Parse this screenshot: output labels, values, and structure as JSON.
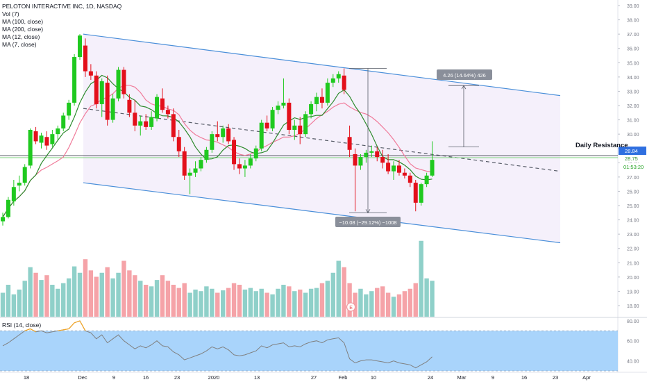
{
  "legend": {
    "title": "PELOTON INTERACTIVE INC, 1D, NASDAQ",
    "vol": "Vol (7)",
    "ma100": "MA (100, close)",
    "ma200": "MA (200, close)",
    "ma12": "MA (12, close)",
    "ma7": "MA (7, close)"
  },
  "rsi_label": "RSI (14, close)",
  "annotations": {
    "daily_resistance": "Daily Resistance",
    "measure_up": "4.26 (14.64%) 426",
    "measure_down": "−10.08 (−29.12%) −1008",
    "earnings_marker": "E"
  },
  "price_tags": {
    "last": "28.84",
    "ma": "28.75",
    "timer": "01:53:20"
  },
  "colors": {
    "up": "#26a69a",
    "down": "#ef5350",
    "up_bright": "#1fc91f",
    "down_bright": "#e3101b",
    "channel": "#4a8fd9",
    "ma_short": "#2e8b2e",
    "ma_long": "#f07b9a",
    "rsi_fill": "#a9d4fb",
    "rsi_line": "#808080",
    "rsi_over": "#f5a623",
    "resistance_line": "#7ed67e"
  },
  "chart_data": [
    {
      "type": "candlestick",
      "title": "PELOTON INTERACTIVE INC, 1D, NASDAQ",
      "x_ticks": [
        "18",
        "Dec",
        "9",
        "16",
        "23",
        "2020",
        "13",
        "27",
        "Feb",
        "10",
        "24",
        "Mar",
        "9",
        "16",
        "23",
        "Apr"
      ],
      "y_ticks": [
        "39.00",
        "38.00",
        "37.00",
        "36.00",
        "35.00",
        "34.00",
        "33.00",
        "32.00",
        "31.00",
        "30.00",
        "29.00",
        "28.00",
        "27.00",
        "26.00",
        "25.00",
        "24.00",
        "23.00",
        "22.00",
        "21.00",
        "20.00",
        "19.00",
        "18.00"
      ],
      "ylim": [
        17.5,
        39.0
      ],
      "candles": [
        {
          "o": 23.9,
          "h": 24.5,
          "l": 23.6,
          "c": 24.2
        },
        {
          "o": 24.2,
          "h": 25.6,
          "l": 24.1,
          "c": 25.4
        },
        {
          "o": 25.3,
          "h": 26.8,
          "l": 25.0,
          "c": 26.3
        },
        {
          "o": 26.4,
          "h": 27.1,
          "l": 26.0,
          "c": 26.6
        },
        {
          "o": 26.6,
          "h": 27.9,
          "l": 26.4,
          "c": 27.7
        },
        {
          "o": 27.8,
          "h": 30.4,
          "l": 27.6,
          "c": 30.3
        },
        {
          "o": 30.2,
          "h": 30.5,
          "l": 29.3,
          "c": 29.5
        },
        {
          "o": 29.4,
          "h": 30.1,
          "l": 29.0,
          "c": 29.9
        },
        {
          "o": 29.8,
          "h": 30.2,
          "l": 28.9,
          "c": 29.2
        },
        {
          "o": 29.3,
          "h": 30.3,
          "l": 29.1,
          "c": 30.0
        },
        {
          "o": 30.0,
          "h": 30.6,
          "l": 29.6,
          "c": 30.4
        },
        {
          "o": 30.4,
          "h": 31.5,
          "l": 30.2,
          "c": 31.3
        },
        {
          "o": 31.3,
          "h": 32.4,
          "l": 31.0,
          "c": 32.2
        },
        {
          "o": 32.2,
          "h": 35.6,
          "l": 32.0,
          "c": 35.4
        },
        {
          "o": 35.4,
          "h": 37.0,
          "l": 35.2,
          "c": 36.9
        },
        {
          "o": 36.2,
          "h": 36.7,
          "l": 34.0,
          "c": 34.4
        },
        {
          "o": 34.4,
          "h": 34.9,
          "l": 33.8,
          "c": 34.1
        },
        {
          "o": 34.1,
          "h": 34.4,
          "l": 31.8,
          "c": 32.1
        },
        {
          "o": 32.1,
          "h": 33.9,
          "l": 31.2,
          "c": 33.7
        },
        {
          "o": 33.6,
          "h": 34.1,
          "l": 30.6,
          "c": 31.0
        },
        {
          "o": 31.0,
          "h": 32.8,
          "l": 30.8,
          "c": 32.5
        },
        {
          "o": 32.5,
          "h": 34.7,
          "l": 32.3,
          "c": 34.5
        },
        {
          "o": 34.5,
          "h": 34.7,
          "l": 32.5,
          "c": 32.8
        },
        {
          "o": 32.4,
          "h": 32.8,
          "l": 31.2,
          "c": 31.5
        },
        {
          "o": 31.5,
          "h": 32.4,
          "l": 30.2,
          "c": 30.6
        },
        {
          "o": 30.6,
          "h": 31.3,
          "l": 29.9,
          "c": 30.9
        },
        {
          "o": 30.9,
          "h": 31.4,
          "l": 30.3,
          "c": 30.5
        },
        {
          "o": 30.5,
          "h": 31.6,
          "l": 30.3,
          "c": 31.2
        },
        {
          "o": 31.1,
          "h": 32.8,
          "l": 30.9,
          "c": 32.6
        },
        {
          "o": 32.5,
          "h": 33.2,
          "l": 31.5,
          "c": 31.7
        },
        {
          "o": 31.7,
          "h": 32.0,
          "l": 31.1,
          "c": 31.4
        },
        {
          "o": 31.4,
          "h": 31.8,
          "l": 29.5,
          "c": 29.8
        },
        {
          "o": 29.8,
          "h": 30.3,
          "l": 28.4,
          "c": 28.8
        },
        {
          "o": 28.8,
          "h": 29.1,
          "l": 26.8,
          "c": 27.1
        },
        {
          "o": 27.1,
          "h": 27.6,
          "l": 25.8,
          "c": 27.3
        },
        {
          "o": 27.3,
          "h": 28.1,
          "l": 27.0,
          "c": 27.6
        },
        {
          "o": 27.6,
          "h": 28.4,
          "l": 27.4,
          "c": 28.2
        },
        {
          "o": 28.2,
          "h": 29.1,
          "l": 28.0,
          "c": 28.9
        },
        {
          "o": 28.9,
          "h": 30.2,
          "l": 28.7,
          "c": 30.0
        },
        {
          "o": 30.0,
          "h": 30.9,
          "l": 29.5,
          "c": 29.8
        },
        {
          "o": 29.8,
          "h": 30.6,
          "l": 29.4,
          "c": 30.4
        },
        {
          "o": 30.4,
          "h": 30.7,
          "l": 29.3,
          "c": 29.5
        },
        {
          "o": 29.6,
          "h": 29.8,
          "l": 27.5,
          "c": 27.9
        },
        {
          "o": 27.9,
          "h": 28.3,
          "l": 27.2,
          "c": 27.6
        },
        {
          "o": 27.6,
          "h": 28.2,
          "l": 27.0,
          "c": 27.8
        },
        {
          "o": 27.8,
          "h": 28.6,
          "l": 27.6,
          "c": 28.3
        },
        {
          "o": 28.3,
          "h": 29.2,
          "l": 28.1,
          "c": 29.0
        },
        {
          "o": 29.0,
          "h": 31.0,
          "l": 28.8,
          "c": 30.8
        },
        {
          "o": 30.8,
          "h": 31.3,
          "l": 30.2,
          "c": 30.4
        },
        {
          "o": 30.4,
          "h": 31.9,
          "l": 30.2,
          "c": 31.7
        },
        {
          "o": 31.7,
          "h": 32.3,
          "l": 31.4,
          "c": 32.0
        },
        {
          "o": 32.0,
          "h": 33.9,
          "l": 31.8,
          "c": 32.2
        },
        {
          "o": 32.2,
          "h": 32.5,
          "l": 30.0,
          "c": 30.3
        },
        {
          "o": 30.3,
          "h": 31.0,
          "l": 29.6,
          "c": 30.6
        },
        {
          "o": 30.6,
          "h": 31.2,
          "l": 29.3,
          "c": 30.0
        },
        {
          "o": 30.0,
          "h": 31.6,
          "l": 29.8,
          "c": 31.4
        },
        {
          "o": 31.4,
          "h": 32.3,
          "l": 31.1,
          "c": 32.1
        },
        {
          "o": 32.1,
          "h": 32.9,
          "l": 31.6,
          "c": 32.6
        },
        {
          "o": 32.6,
          "h": 33.2,
          "l": 31.8,
          "c": 32.2
        },
        {
          "o": 32.2,
          "h": 33.9,
          "l": 32.0,
          "c": 33.6
        },
        {
          "o": 33.6,
          "h": 34.2,
          "l": 33.3,
          "c": 33.9
        },
        {
          "o": 33.9,
          "h": 34.4,
          "l": 33.6,
          "c": 34.2
        },
        {
          "o": 34.1,
          "h": 34.6,
          "l": 32.8,
          "c": 33.1
        },
        {
          "o": 29.8,
          "h": 30.6,
          "l": 28.4,
          "c": 28.9
        },
        {
          "o": 28.6,
          "h": 29.0,
          "l": 24.6,
          "c": 27.8
        },
        {
          "o": 27.8,
          "h": 28.6,
          "l": 27.5,
          "c": 28.4
        },
        {
          "o": 28.4,
          "h": 28.9,
          "l": 28.0,
          "c": 28.7
        },
        {
          "o": 28.7,
          "h": 29.2,
          "l": 28.4,
          "c": 28.8
        },
        {
          "o": 28.8,
          "h": 29.1,
          "l": 28.1,
          "c": 28.4
        },
        {
          "o": 28.4,
          "h": 28.9,
          "l": 27.6,
          "c": 28.0
        },
        {
          "o": 28.0,
          "h": 28.6,
          "l": 27.2,
          "c": 27.4
        },
        {
          "o": 27.4,
          "h": 28.1,
          "l": 26.8,
          "c": 27.8
        },
        {
          "o": 27.8,
          "h": 28.2,
          "l": 27.1,
          "c": 27.3
        },
        {
          "o": 27.3,
          "h": 27.6,
          "l": 26.9,
          "c": 27.1
        },
        {
          "o": 27.1,
          "h": 27.3,
          "l": 26.3,
          "c": 26.6
        },
        {
          "o": 26.6,
          "h": 26.8,
          "l": 24.6,
          "c": 25.2
        },
        {
          "o": 25.2,
          "h": 26.6,
          "l": 25.0,
          "c": 26.5
        },
        {
          "o": 26.5,
          "h": 27.3,
          "l": 26.3,
          "c": 27.1
        },
        {
          "o": 27.1,
          "h": 29.5,
          "l": 27.0,
          "c": 28.2
        }
      ],
      "volume": [
        0.3,
        0.4,
        0.28,
        0.34,
        0.45,
        0.62,
        0.55,
        0.46,
        0.52,
        0.4,
        0.35,
        0.42,
        0.48,
        0.63,
        0.55,
        0.72,
        0.58,
        0.5,
        0.55,
        0.62,
        0.48,
        0.55,
        0.7,
        0.58,
        0.52,
        0.45,
        0.4,
        0.38,
        0.46,
        0.52,
        0.45,
        0.4,
        0.36,
        0.42,
        0.3,
        0.34,
        0.32,
        0.38,
        0.35,
        0.3,
        0.33,
        0.36,
        0.42,
        0.4,
        0.34,
        0.36,
        0.32,
        0.35,
        0.3,
        0.28,
        0.35,
        0.4,
        0.38,
        0.32,
        0.34,
        0.3,
        0.35,
        0.36,
        0.42,
        0.45,
        0.55,
        0.7,
        0.62,
        0.42,
        0.3,
        0.35,
        0.28,
        0.32,
        0.36,
        0.38,
        0.3,
        0.25,
        0.28,
        0.32,
        0.35,
        0.42,
        0.95,
        0.48,
        0.45
      ],
      "channel": {
        "upper": [
          [
            36.7,
            37.0
          ],
          [
            44.6,
            32.7
          ]
        ],
        "lower": [
          [
            36.7,
            26.6
          ],
          [
            44.6,
            22.4
          ]
        ],
        "mid": [
          [
            36.7,
            31.8
          ],
          [
            44.6,
            27.4
          ]
        ]
      },
      "daily_resistance": 28.4,
      "last_price": 28.84
    },
    {
      "type": "line",
      "title": "RSI (14, close)",
      "y_ticks": [
        "80.00",
        "60.00",
        "40.00"
      ],
      "ylim": [
        30,
        82
      ],
      "band": [
        30,
        70
      ],
      "values": [
        55,
        58,
        62,
        66,
        70,
        72,
        69,
        70,
        68,
        69,
        70,
        71,
        72,
        78,
        80,
        70,
        68,
        62,
        66,
        58,
        62,
        66,
        60,
        56,
        52,
        55,
        53,
        56,
        60,
        55,
        54,
        49,
        46,
        41,
        43,
        45,
        47,
        50,
        54,
        52,
        54,
        51,
        46,
        45,
        46,
        48,
        50,
        55,
        53,
        56,
        57,
        58,
        54,
        55,
        54,
        57,
        59,
        60,
        58,
        61,
        62,
        63,
        58,
        42,
        38,
        40,
        41,
        41,
        40,
        39,
        38,
        40,
        38,
        37,
        36,
        33,
        36,
        39,
        44
      ]
    }
  ]
}
